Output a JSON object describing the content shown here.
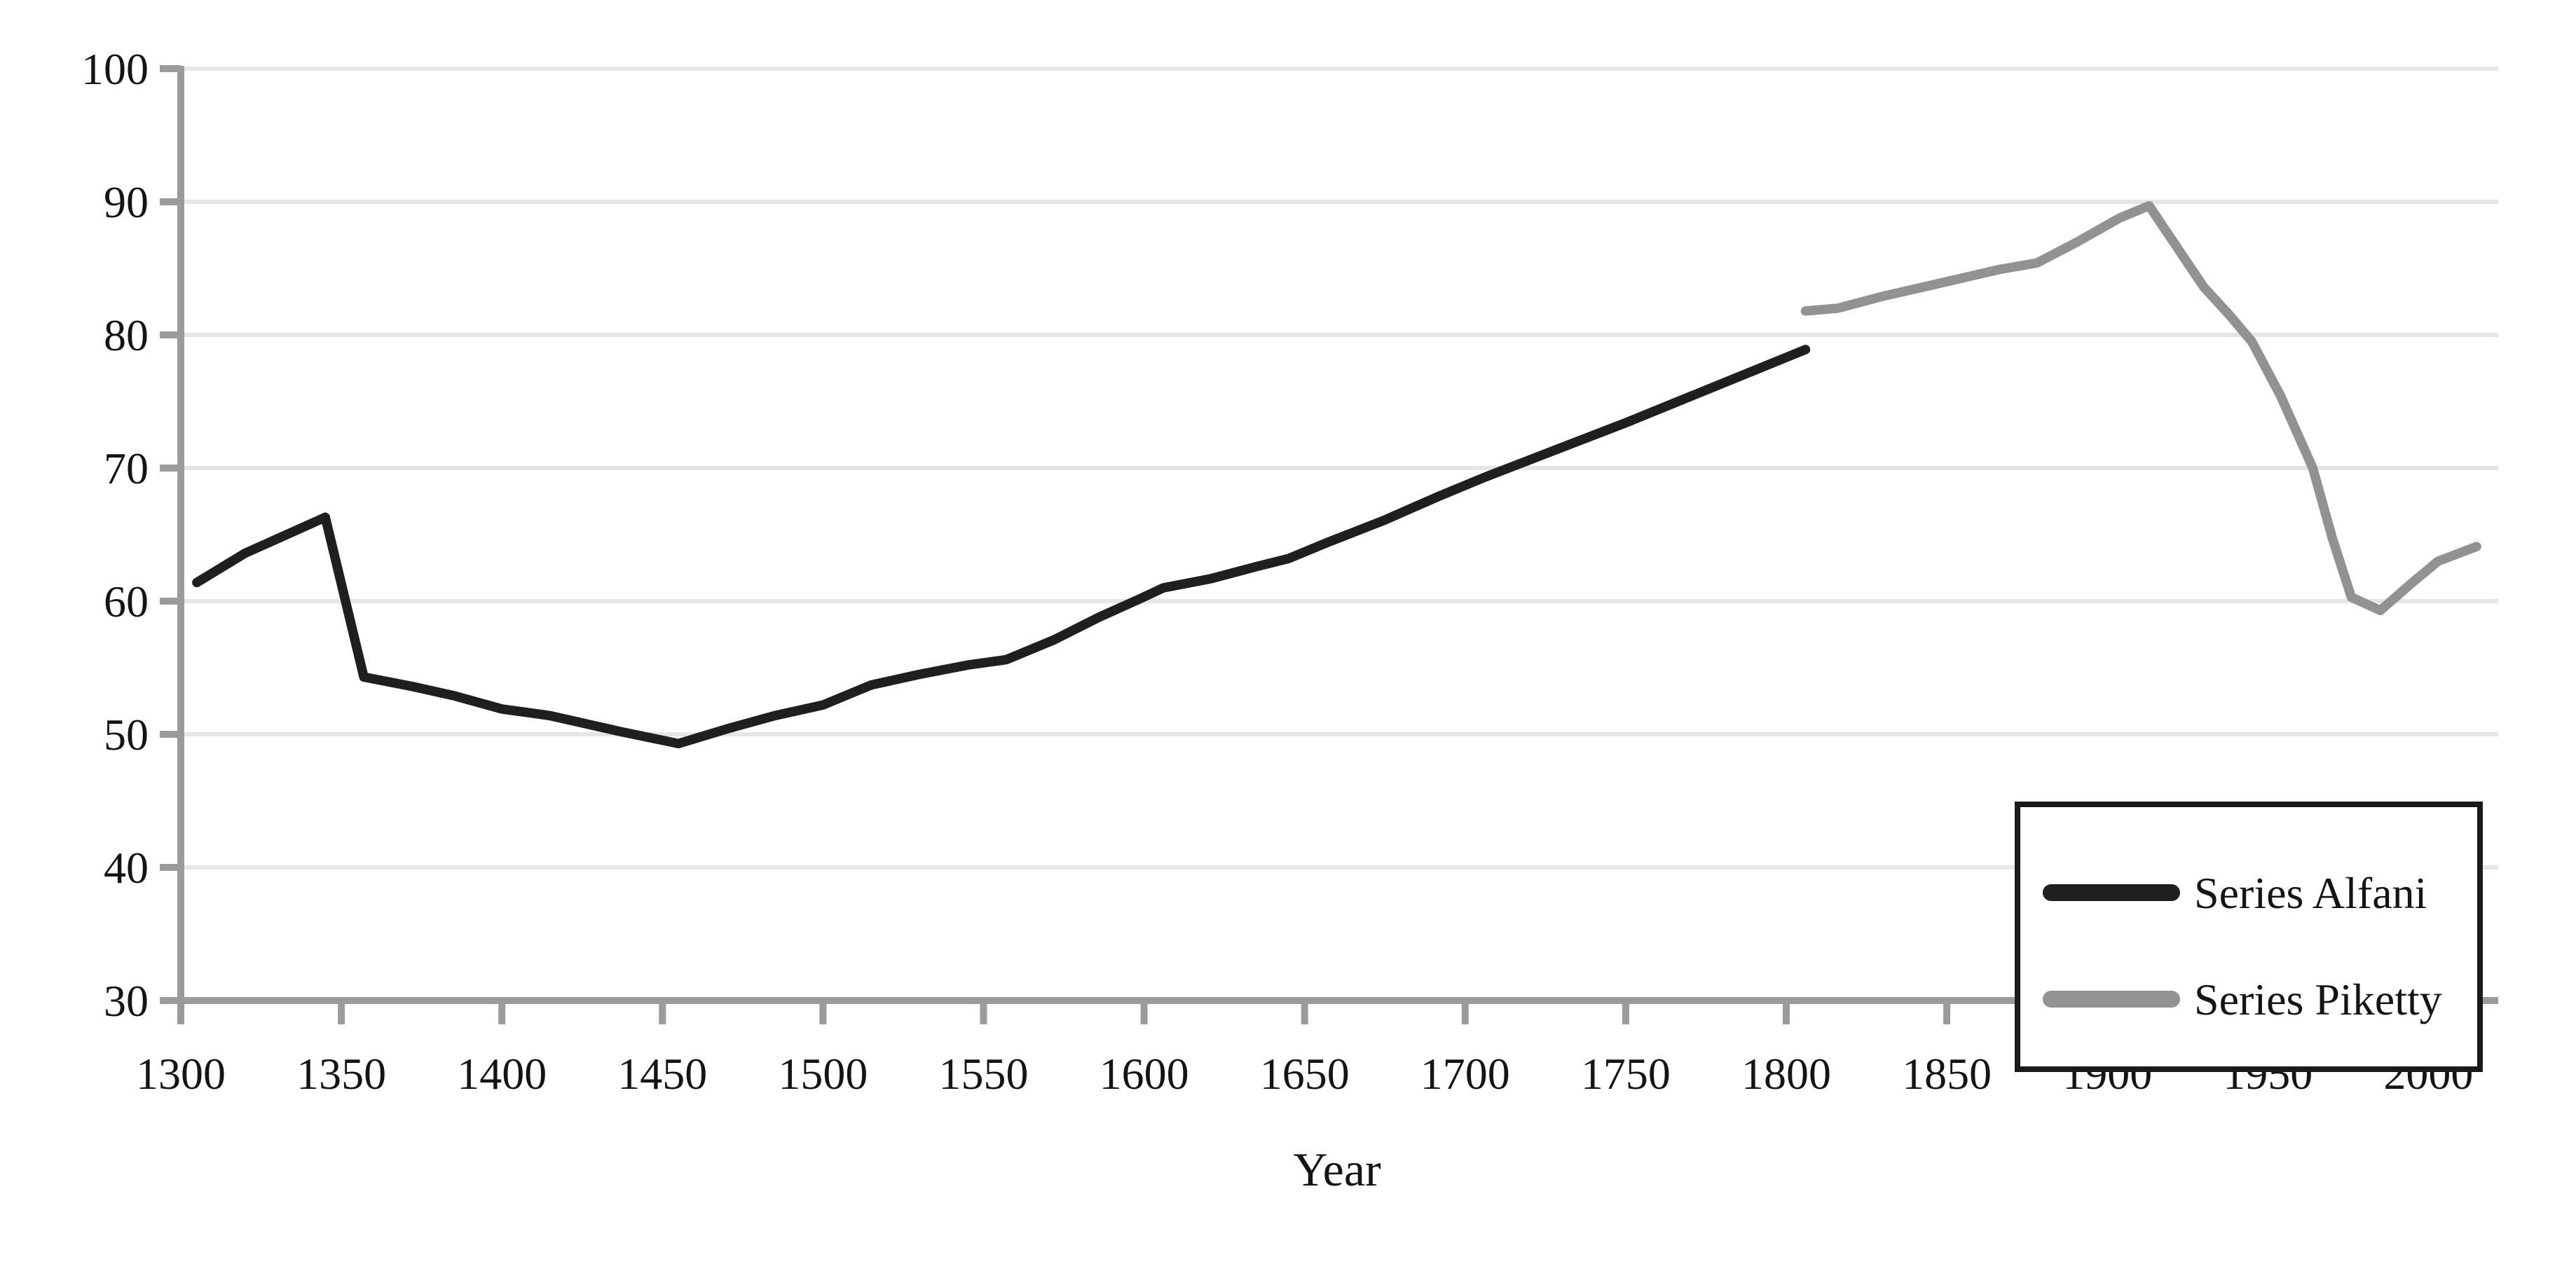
{
  "chart_data": {
    "type": "line",
    "title": "",
    "xlabel": "Year",
    "ylabel": "",
    "xlim": [
      1300,
      2021
    ],
    "ylim": [
      30,
      100
    ],
    "x_ticks": [
      1300,
      1350,
      1400,
      1450,
      1500,
      1550,
      1600,
      1650,
      1700,
      1750,
      1800,
      1850,
      1900,
      1950,
      2000
    ],
    "y_ticks": [
      30,
      40,
      50,
      60,
      70,
      80,
      90,
      100
    ],
    "grid": "horizontal gridlines at every y tick, light gray",
    "legend": {
      "position": "bottom-right",
      "border": true,
      "entries": [
        {
          "label": "Series Alfani",
          "color": "#211e1e"
        },
        {
          "label": "Series Piketty",
          "color": "#949194"
        }
      ]
    },
    "series": [
      {
        "name": "Series Alfani",
        "color": "#211e1e",
        "points": [
          [
            1305,
            61.4
          ],
          [
            1320,
            63.6
          ],
          [
            1345,
            66.3
          ],
          [
            1357,
            54.3
          ],
          [
            1372,
            53.6
          ],
          [
            1385,
            52.9
          ],
          [
            1400,
            51.9
          ],
          [
            1415,
            51.4
          ],
          [
            1437,
            50.2
          ],
          [
            1455,
            49.3
          ],
          [
            1470,
            50.4
          ],
          [
            1485,
            51.4
          ],
          [
            1500,
            52.2
          ],
          [
            1515,
            53.7
          ],
          [
            1530,
            54.5
          ],
          [
            1545,
            55.2
          ],
          [
            1557,
            55.6
          ],
          [
            1572,
            57.1
          ],
          [
            1586,
            58.8
          ],
          [
            1598,
            60.1
          ],
          [
            1606,
            61.0
          ],
          [
            1621,
            61.7
          ],
          [
            1635,
            62.6
          ],
          [
            1645,
            63.2
          ],
          [
            1657,
            64.4
          ],
          [
            1675,
            66.1
          ],
          [
            1692,
            67.9
          ],
          [
            1706,
            69.3
          ],
          [
            1750,
            73.4
          ],
          [
            1806,
            78.9
          ]
        ]
      },
      {
        "name": "Series Piketty",
        "color": "#949194",
        "points": [
          [
            1806,
            81.8
          ],
          [
            1816,
            82.0
          ],
          [
            1830,
            82.9
          ],
          [
            1850,
            84.0
          ],
          [
            1866,
            84.9
          ],
          [
            1878,
            85.4
          ],
          [
            1890,
            86.9
          ],
          [
            1904,
            88.8
          ],
          [
            1913,
            89.7
          ],
          [
            1930,
            83.6
          ],
          [
            1938,
            81.5
          ],
          [
            1945,
            79.5
          ],
          [
            1954,
            75.4
          ],
          [
            1964,
            70.0
          ],
          [
            1970,
            64.8
          ],
          [
            1976,
            60.3
          ],
          [
            1985,
            59.3
          ],
          [
            1995,
            61.4
          ],
          [
            2003,
            63.0
          ],
          [
            2015,
            64.1
          ]
        ]
      }
    ]
  },
  "style": {
    "background": "#ffffff",
    "gridline_color": "#e5e5e7",
    "axis_color": "#9b9b9b",
    "text_color": "#151414",
    "legend_border_color": "#1b1919"
  }
}
